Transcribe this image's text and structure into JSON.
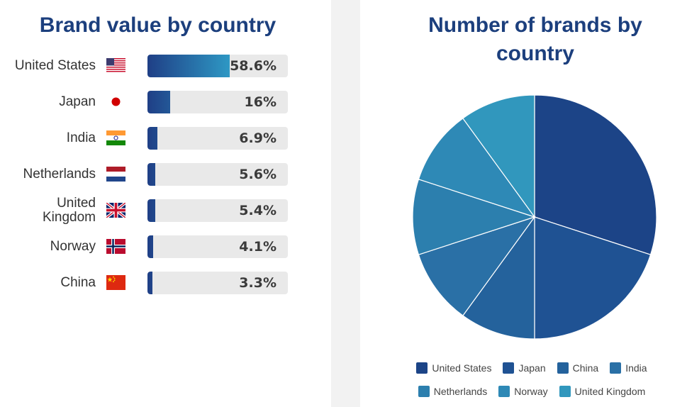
{
  "left_chart": {
    "title": "Brand value by country",
    "rows": [
      {
        "country": "United States",
        "flag": "us-flag-icon",
        "value": 58.6,
        "label": "58.6%"
      },
      {
        "country": "Japan",
        "flag": "japan-flag-icon",
        "value": 16,
        "label": "16%"
      },
      {
        "country": "India",
        "flag": "india-flag-icon",
        "value": 6.9,
        "label": "6.9%"
      },
      {
        "country": "Netherlands",
        "flag": "netherlands-flag-icon",
        "value": 5.6,
        "label": "5.6%"
      },
      {
        "country": "United Kingdom",
        "flag": "uk-flag-icon",
        "value": 5.4,
        "label": "5.4%"
      },
      {
        "country": "Norway",
        "flag": "norway-flag-icon",
        "value": 4.1,
        "label": "4.1%"
      },
      {
        "country": "China",
        "flag": "china-flag-icon",
        "value": 3.3,
        "label": "3.3%"
      }
    ]
  },
  "right_chart": {
    "title": "Number of brands by country"
  },
  "chart_data": [
    {
      "type": "bar",
      "orientation": "horizontal",
      "title": "Brand value by country",
      "categories": [
        "United States",
        "Japan",
        "India",
        "Netherlands",
        "United Kingdom",
        "Norway",
        "China"
      ],
      "values": [
        58.6,
        16,
        6.9,
        5.6,
        5.4,
        4.1,
        3.3
      ],
      "unit": "%",
      "xlim": [
        0,
        100
      ]
    },
    {
      "type": "pie",
      "title": "Number of brands by country",
      "categories": [
        "United States",
        "Japan",
        "China",
        "India",
        "Netherlands",
        "Norway",
        "United Kingdom"
      ],
      "values": [
        3,
        2,
        1,
        1,
        1,
        1,
        1
      ],
      "colors": [
        "#1c4487",
        "#1f5293",
        "#24629c",
        "#2a70a6",
        "#2c7fae",
        "#2e89b6",
        "#3197bd"
      ],
      "legend_position": "bottom"
    }
  ]
}
